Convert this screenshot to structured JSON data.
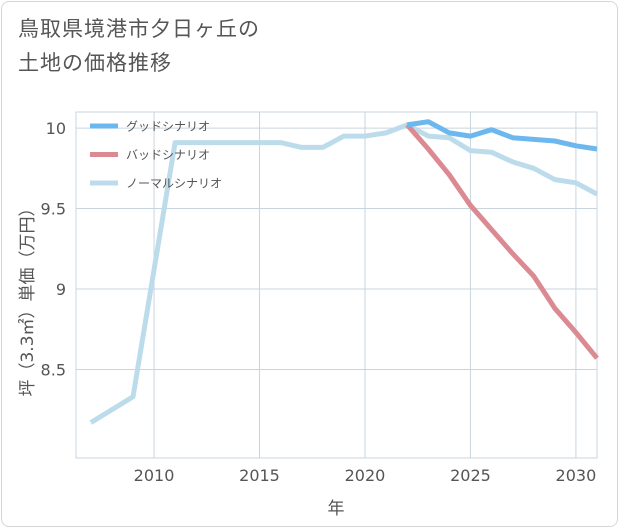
{
  "title": {
    "line1": "鳥取県境港市夕日ヶ丘の",
    "line2": "土地の価格推移"
  },
  "chart_data": {
    "type": "line",
    "xlabel": "年",
    "ylabel": "坪（3.3㎡）単価（万円）",
    "xlim": [
      2006.3,
      2031
    ],
    "ylim": [
      7.95,
      10.1
    ],
    "x_ticks": [
      "2010",
      "2015",
      "2020",
      "2025",
      "2030"
    ],
    "y_ticks": [
      "8.5",
      "9",
      "9.5",
      "10"
    ],
    "grid": true,
    "legend_position": "top-left",
    "series": [
      {
        "name": "グッドシナリオ",
        "color": "#6cb8ee",
        "x": [
          2022,
          2023,
          2024,
          2025,
          2026,
          2027,
          2028,
          2029,
          2030,
          2031
        ],
        "y": [
          10.02,
          10.04,
          9.97,
          9.95,
          9.99,
          9.94,
          9.93,
          9.92,
          9.89,
          9.87
        ]
      },
      {
        "name": "バッドシナリオ",
        "color": "#dc8a92",
        "x": [
          2022,
          2023,
          2024,
          2025,
          2026,
          2027,
          2028,
          2029,
          2030,
          2031
        ],
        "y": [
          10.02,
          9.87,
          9.71,
          9.52,
          9.37,
          9.22,
          9.08,
          8.88,
          8.73,
          8.57
        ]
      },
      {
        "name": "ノーマルシナリオ",
        "color": "#bcdcec",
        "x": [
          2007,
          2009,
          2011,
          2012,
          2013,
          2014,
          2015,
          2016,
          2017,
          2018,
          2019,
          2020,
          2021,
          2022,
          2023,
          2024,
          2025,
          2026,
          2027,
          2028,
          2029,
          2030,
          2031
        ],
        "y": [
          8.17,
          8.33,
          9.91,
          9.91,
          9.91,
          9.91,
          9.91,
          9.91,
          9.88,
          9.88,
          9.95,
          9.95,
          9.97,
          10.02,
          9.95,
          9.94,
          9.86,
          9.85,
          9.79,
          9.75,
          9.68,
          9.66,
          9.59
        ]
      }
    ]
  }
}
